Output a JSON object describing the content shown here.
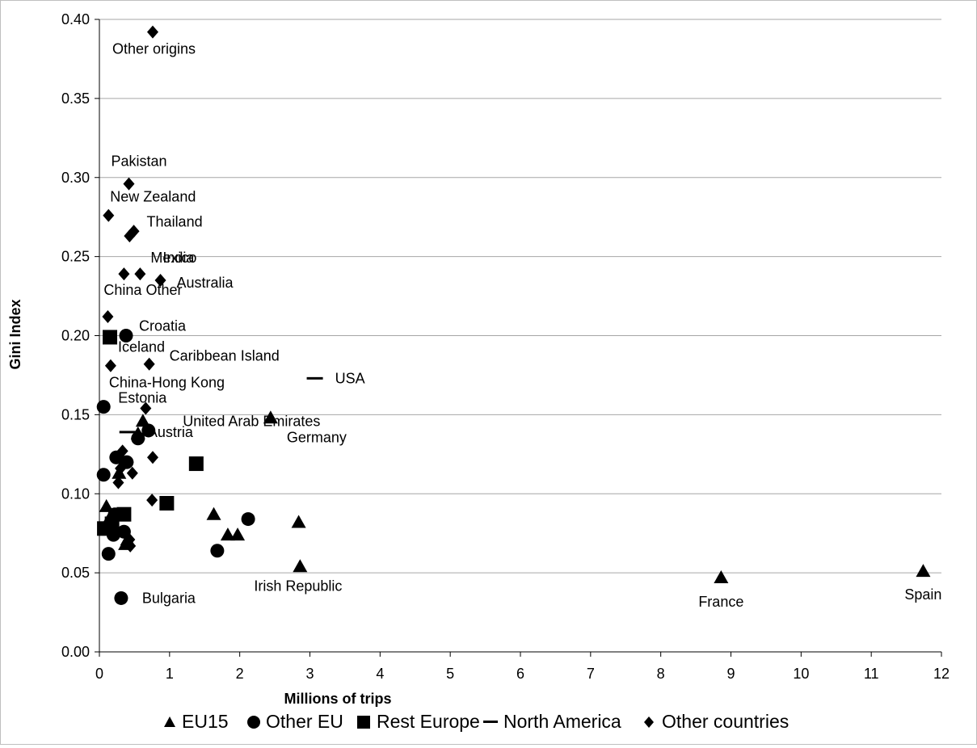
{
  "chart_data": {
    "type": "scatter",
    "title": "",
    "xlabel": "Millions of trips",
    "ylabel": "Gini Index",
    "xlim": [
      0,
      12
    ],
    "ylim": [
      0,
      0.4
    ],
    "xticks": [
      0,
      1,
      2,
      3,
      4,
      5,
      6,
      7,
      8,
      9,
      10,
      11,
      12
    ],
    "xtick_labels": [
      "0",
      "1",
      "2",
      "3",
      "4",
      "5",
      "6",
      "7",
      "8",
      "9",
      "10",
      "11",
      "12"
    ],
    "yticks": [
      0,
      0.05,
      0.1,
      0.15,
      0.2,
      0.25,
      0.3,
      0.35,
      0.4
    ],
    "ytick_labels": [
      "0.00",
      "0.05",
      "0.10",
      "0.15",
      "0.20",
      "0.25",
      "0.30",
      "0.35",
      "0.40"
    ],
    "grid": "horizontal",
    "legend_position": "bottom",
    "series": [
      {
        "name": "EU15",
        "marker": "triangle",
        "color": "#000000",
        "points": [
          {
            "x": 11.74,
            "y": 0.051,
            "label": "Spain"
          },
          {
            "x": 8.86,
            "y": 0.047,
            "label": "France"
          },
          {
            "x": 2.44,
            "y": 0.148,
            "label": "Germany"
          },
          {
            "x": 2.86,
            "y": 0.054,
            "label": "Irish Republic"
          },
          {
            "x": 2.84,
            "y": 0.082
          },
          {
            "x": 1.63,
            "y": 0.087
          },
          {
            "x": 1.83,
            "y": 0.074
          },
          {
            "x": 1.97,
            "y": 0.074
          },
          {
            "x": 0.62,
            "y": 0.146,
            "label": "Austria"
          },
          {
            "x": 0.55,
            "y": 0.138
          },
          {
            "x": 0.1,
            "y": 0.092
          },
          {
            "x": 0.28,
            "y": 0.113
          },
          {
            "x": 0.37,
            "y": 0.068
          },
          {
            "x": 0.15,
            "y": 0.085
          },
          {
            "x": 0.4,
            "y": 0.071
          }
        ]
      },
      {
        "name": "Other EU",
        "marker": "circle",
        "color": "#000000",
        "points": [
          {
            "x": 0.06,
            "y": 0.155,
            "label": "Estonia"
          },
          {
            "x": 0.38,
            "y": 0.2,
            "label": "Croatia"
          },
          {
            "x": 0.31,
            "y": 0.034,
            "label": "Bulgaria"
          },
          {
            "x": 0.06,
            "y": 0.112
          },
          {
            "x": 0.24,
            "y": 0.123
          },
          {
            "x": 0.39,
            "y": 0.12
          },
          {
            "x": 0.55,
            "y": 0.135
          },
          {
            "x": 0.7,
            "y": 0.14
          },
          {
            "x": 0.22,
            "y": 0.087
          },
          {
            "x": 0.2,
            "y": 0.074
          },
          {
            "x": 0.35,
            "y": 0.076
          },
          {
            "x": 0.13,
            "y": 0.062
          },
          {
            "x": 1.68,
            "y": 0.064
          },
          {
            "x": 2.12,
            "y": 0.084
          }
        ]
      },
      {
        "name": "Rest Europe",
        "marker": "square",
        "color": "#000000",
        "points": [
          {
            "x": 0.15,
            "y": 0.199,
            "label": "Iceland"
          },
          {
            "x": 1.38,
            "y": 0.119
          },
          {
            "x": 0.96,
            "y": 0.094
          },
          {
            "x": 0.35,
            "y": 0.087
          },
          {
            "x": 0.07,
            "y": 0.078
          },
          {
            "x": 0.18,
            "y": 0.081
          }
        ]
      },
      {
        "name": "North America",
        "marker": "dash",
        "color": "#000000",
        "points": [
          {
            "x": 3.07,
            "y": 0.173,
            "label": "USA"
          },
          {
            "x": 0.4,
            "y": 0.139
          }
        ]
      },
      {
        "name": "Other countries",
        "marker": "diamond",
        "color": "#000000",
        "points": [
          {
            "x": 0.76,
            "y": 0.392,
            "label": "Other origins"
          },
          {
            "x": 0.42,
            "y": 0.296,
            "label": "Pakistan"
          },
          {
            "x": 0.13,
            "y": 0.276,
            "label": "New Zealand"
          },
          {
            "x": 0.49,
            "y": 0.266,
            "label": "Thailand"
          },
          {
            "x": 0.43,
            "y": 0.263,
            "label": "Mexico"
          },
          {
            "x": 0.58,
            "y": 0.239,
            "label": "India"
          },
          {
            "x": 0.35,
            "y": 0.239
          },
          {
            "x": 0.87,
            "y": 0.235,
            "label": "Australia"
          },
          {
            "x": 0.12,
            "y": 0.212,
            "label": "China Other"
          },
          {
            "x": 0.16,
            "y": 0.181,
            "label": "China-Hong Kong"
          },
          {
            "x": 0.71,
            "y": 0.182,
            "label": "Caribbean Island"
          },
          {
            "x": 0.66,
            "y": 0.154,
            "label": "United Arab Emirates"
          },
          {
            "x": 0.33,
            "y": 0.127
          },
          {
            "x": 0.3,
            "y": 0.116
          },
          {
            "x": 0.41,
            "y": 0.12
          },
          {
            "x": 0.27,
            "y": 0.107
          },
          {
            "x": 0.47,
            "y": 0.113
          },
          {
            "x": 0.76,
            "y": 0.123
          },
          {
            "x": 0.75,
            "y": 0.096
          },
          {
            "x": 0.43,
            "y": 0.071
          },
          {
            "x": 0.44,
            "y": 0.067
          }
        ]
      }
    ]
  }
}
